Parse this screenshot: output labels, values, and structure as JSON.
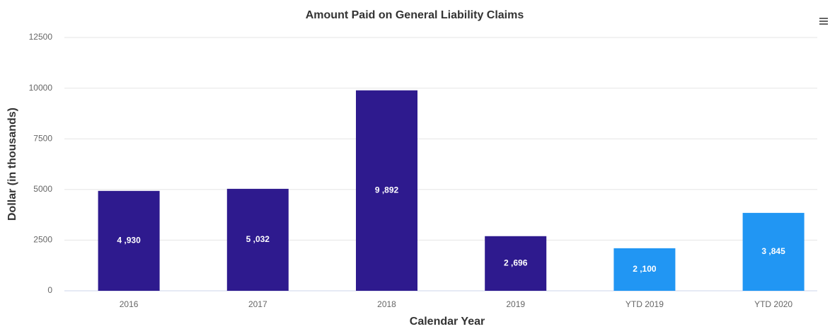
{
  "chart_data": {
    "type": "bar",
    "title": "Amount Paid on General Liability Claims",
    "x_label": "Calendar Year",
    "y_label": "Dollar (in thousands)",
    "categories": [
      "2016",
      "2017",
      "2018",
      "2019",
      "YTD 2019",
      "YTD 2020"
    ],
    "values": [
      4930,
      5032,
      9892,
      2696,
      2100,
      3845
    ],
    "value_labels": [
      "4 ,930",
      "5 ,032",
      "9 ,892",
      "2 ,696",
      "2 ,100",
      "3 ,845"
    ],
    "colors": [
      "#2e1a8e",
      "#2e1a8e",
      "#2e1a8e",
      "#2e1a8e",
      "#2196f3",
      "#2196f3"
    ],
    "ylim": [
      0,
      12500
    ],
    "yticks": [
      0,
      2500,
      5000,
      7500,
      10000,
      12500
    ],
    "grid": true
  }
}
